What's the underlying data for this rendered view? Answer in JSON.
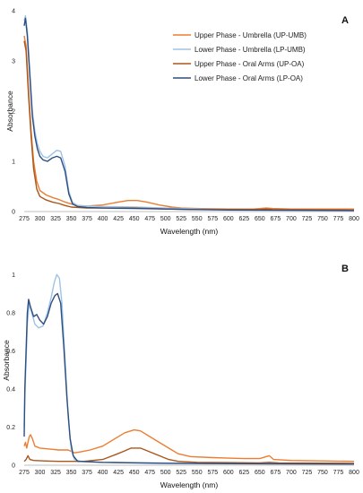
{
  "colors": {
    "up_umb": "#ed7d31",
    "lp_umb": "#9dc3e6",
    "up_oa": "#a9561b",
    "lp_oa": "#2f4e80"
  },
  "chart_data": [
    {
      "type": "line",
      "panel_label": "A",
      "xlabel": "Wavelength (nm)",
      "ylabel": "Absorbance",
      "xlim": [
        275,
        800
      ],
      "ylim": [
        0,
        4
      ],
      "x_ticks": [
        275,
        300,
        325,
        350,
        375,
        400,
        425,
        450,
        475,
        500,
        525,
        550,
        575,
        600,
        625,
        650,
        675,
        700,
        725,
        750,
        775,
        800
      ],
      "y_ticks": [
        0,
        1,
        2,
        3,
        4
      ],
      "grid": false,
      "legend_placement": "top-right",
      "series": [
        {
          "name": "Upper Phase - Umbrella (UP-UMB)",
          "color_key": "up_umb",
          "points": [
            [
              275,
              3.5
            ],
            [
              278,
              3.3
            ],
            [
              282,
              2.4
            ],
            [
              286,
              1.6
            ],
            [
              290,
              1.0
            ],
            [
              295,
              0.6
            ],
            [
              300,
              0.42
            ],
            [
              310,
              0.33
            ],
            [
              320,
              0.28
            ],
            [
              330,
              0.24
            ],
            [
              340,
              0.19
            ],
            [
              350,
              0.15
            ],
            [
              360,
              0.12
            ],
            [
              375,
              0.11
            ],
            [
              400,
              0.13
            ],
            [
              425,
              0.19
            ],
            [
              440,
              0.22
            ],
            [
              455,
              0.22
            ],
            [
              470,
              0.19
            ],
            [
              490,
              0.13
            ],
            [
              510,
              0.09
            ],
            [
              525,
              0.07
            ],
            [
              550,
              0.06
            ],
            [
              600,
              0.05
            ],
            [
              640,
              0.05
            ],
            [
              660,
              0.07
            ],
            [
              670,
              0.06
            ],
            [
              700,
              0.05
            ],
            [
              800,
              0.05
            ]
          ]
        },
        {
          "name": "Lower Phase - Umbrella (LP-UMB)",
          "color_key": "lp_umb",
          "points": [
            [
              275,
              3.8
            ],
            [
              277,
              3.9
            ],
            [
              280,
              3.6
            ],
            [
              284,
              2.8
            ],
            [
              288,
              2.0
            ],
            [
              292,
              1.6
            ],
            [
              296,
              1.35
            ],
            [
              300,
              1.2
            ],
            [
              305,
              1.1
            ],
            [
              312,
              1.07
            ],
            [
              320,
              1.15
            ],
            [
              327,
              1.22
            ],
            [
              333,
              1.2
            ],
            [
              340,
              0.9
            ],
            [
              346,
              0.4
            ],
            [
              352,
              0.18
            ],
            [
              360,
              0.12
            ],
            [
              375,
              0.11
            ],
            [
              400,
              0.1
            ],
            [
              450,
              0.09
            ],
            [
              500,
              0.07
            ],
            [
              550,
              0.05
            ],
            [
              600,
              0.04
            ],
            [
              800,
              0.03
            ]
          ]
        },
        {
          "name": "Upper Phase - Oral Arms (UP-OA)",
          "color_key": "up_oa",
          "points": [
            [
              275,
              3.4
            ],
            [
              278,
              3.2
            ],
            [
              282,
              2.3
            ],
            [
              286,
              1.5
            ],
            [
              290,
              0.85
            ],
            [
              295,
              0.45
            ],
            [
              300,
              0.3
            ],
            [
              310,
              0.23
            ],
            [
              320,
              0.19
            ],
            [
              330,
              0.16
            ],
            [
              340,
              0.12
            ],
            [
              350,
              0.09
            ],
            [
              375,
              0.07
            ],
            [
              425,
              0.07
            ],
            [
              450,
              0.07
            ],
            [
              475,
              0.06
            ],
            [
              500,
              0.05
            ],
            [
              550,
              0.04
            ],
            [
              650,
              0.04
            ],
            [
              660,
              0.05
            ],
            [
              670,
              0.04
            ],
            [
              800,
              0.03
            ]
          ]
        },
        {
          "name": "Lower Phase - Oral Arms (LP-OA)",
          "color_key": "lp_oa",
          "points": [
            [
              275,
              3.7
            ],
            [
              277,
              3.85
            ],
            [
              280,
              3.5
            ],
            [
              284,
              2.7
            ],
            [
              288,
              1.9
            ],
            [
              292,
              1.5
            ],
            [
              296,
              1.25
            ],
            [
              300,
              1.1
            ],
            [
              305,
              1.03
            ],
            [
              312,
              1.0
            ],
            [
              320,
              1.07
            ],
            [
              327,
              1.1
            ],
            [
              333,
              1.07
            ],
            [
              340,
              0.8
            ],
            [
              346,
              0.35
            ],
            [
              352,
              0.15
            ],
            [
              360,
              0.1
            ],
            [
              375,
              0.08
            ],
            [
              400,
              0.07
            ],
            [
              450,
              0.06
            ],
            [
              500,
              0.05
            ],
            [
              550,
              0.04
            ],
            [
              600,
              0.03
            ],
            [
              800,
              0.02
            ]
          ]
        }
      ]
    },
    {
      "type": "line",
      "panel_label": "B",
      "xlabel": "Wavelength (nm)",
      "ylabel": "Absorbance",
      "xlim": [
        275,
        800
      ],
      "ylim": [
        0,
        1.1
      ],
      "x_ticks": [
        275,
        300,
        325,
        350,
        375,
        400,
        425,
        450,
        475,
        500,
        525,
        550,
        575,
        600,
        625,
        650,
        675,
        700,
        725,
        750,
        775,
        800
      ],
      "y_ticks": [
        0,
        0.2,
        0.4,
        0.6,
        0.8,
        1
      ],
      "y_tick_labels": [
        "0",
        "0.2",
        "0.4",
        "0.6",
        "0.8",
        "1"
      ],
      "grid": false,
      "legend_placement": "none",
      "series": [
        {
          "name": "Upper Phase - Umbrella (UP-UMB)",
          "color_key": "up_umb",
          "points": [
            [
              275,
              0.1
            ],
            [
              277,
              0.12
            ],
            [
              279,
              0.09
            ],
            [
              281,
              0.12
            ],
            [
              283,
              0.15
            ],
            [
              285,
              0.16
            ],
            [
              288,
              0.14
            ],
            [
              292,
              0.1
            ],
            [
              300,
              0.09
            ],
            [
              315,
              0.085
            ],
            [
              330,
              0.08
            ],
            [
              345,
              0.08
            ],
            [
              355,
              0.065
            ],
            [
              365,
              0.07
            ],
            [
              380,
              0.08
            ],
            [
              400,
              0.1
            ],
            [
              420,
              0.14
            ],
            [
              435,
              0.17
            ],
            [
              450,
              0.185
            ],
            [
              460,
              0.18
            ],
            [
              475,
              0.15
            ],
            [
              490,
              0.12
            ],
            [
              505,
              0.09
            ],
            [
              520,
              0.06
            ],
            [
              540,
              0.045
            ],
            [
              575,
              0.04
            ],
            [
              625,
              0.035
            ],
            [
              650,
              0.035
            ],
            [
              660,
              0.045
            ],
            [
              665,
              0.05
            ],
            [
              672,
              0.03
            ],
            [
              700,
              0.025
            ],
            [
              800,
              0.02
            ]
          ]
        },
        {
          "name": "Lower Phase - Umbrella (LP-UMB)",
          "color_key": "lp_umb",
          "points": [
            [
              275,
              0.2
            ],
            [
              276,
              0.35
            ],
            [
              278,
              0.55
            ],
            [
              280,
              0.74
            ],
            [
              283,
              0.85
            ],
            [
              287,
              0.8
            ],
            [
              292,
              0.74
            ],
            [
              298,
              0.72
            ],
            [
              305,
              0.73
            ],
            [
              312,
              0.8
            ],
            [
              318,
              0.88
            ],
            [
              323,
              0.96
            ],
            [
              327,
              1.0
            ],
            [
              331,
              0.98
            ],
            [
              335,
              0.85
            ],
            [
              340,
              0.55
            ],
            [
              345,
              0.25
            ],
            [
              350,
              0.08
            ],
            [
              355,
              0.03
            ],
            [
              365,
              0.02
            ],
            [
              400,
              0.015
            ],
            [
              500,
              0.012
            ],
            [
              600,
              0.01
            ],
            [
              800,
              0.008
            ]
          ]
        },
        {
          "name": "Upper Phase - Oral Arms (UP-OA)",
          "color_key": "up_oa",
          "points": [
            [
              275,
              0.02
            ],
            [
              278,
              0.03
            ],
            [
              281,
              0.05
            ],
            [
              284,
              0.03
            ],
            [
              290,
              0.025
            ],
            [
              310,
              0.022
            ],
            [
              330,
              0.02
            ],
            [
              350,
              0.02
            ],
            [
              370,
              0.02
            ],
            [
              400,
              0.03
            ],
            [
              420,
              0.055
            ],
            [
              435,
              0.075
            ],
            [
              445,
              0.09
            ],
            [
              460,
              0.09
            ],
            [
              475,
              0.07
            ],
            [
              490,
              0.05
            ],
            [
              505,
              0.03
            ],
            [
              520,
              0.02
            ],
            [
              550,
              0.015
            ],
            [
              650,
              0.012
            ],
            [
              665,
              0.015
            ],
            [
              680,
              0.012
            ],
            [
              800,
              0.01
            ]
          ]
        },
        {
          "name": "Lower Phase - Oral Arms (LP-OA)",
          "color_key": "lp_oa",
          "points": [
            [
              275,
              0.15
            ],
            [
              276,
              0.4
            ],
            [
              278,
              0.6
            ],
            [
              280,
              0.8
            ],
            [
              282,
              0.87
            ],
            [
              285,
              0.83
            ],
            [
              290,
              0.78
            ],
            [
              295,
              0.79
            ],
            [
              300,
              0.76
            ],
            [
              306,
              0.74
            ],
            [
              312,
              0.78
            ],
            [
              318,
              0.85
            ],
            [
              324,
              0.89
            ],
            [
              328,
              0.9
            ],
            [
              333,
              0.85
            ],
            [
              338,
              0.62
            ],
            [
              343,
              0.35
            ],
            [
              348,
              0.14
            ],
            [
              353,
              0.05
            ],
            [
              360,
              0.02
            ],
            [
              400,
              0.015
            ],
            [
              500,
              0.01
            ],
            [
              600,
              0.008
            ],
            [
              800,
              0.006
            ]
          ]
        }
      ]
    }
  ]
}
